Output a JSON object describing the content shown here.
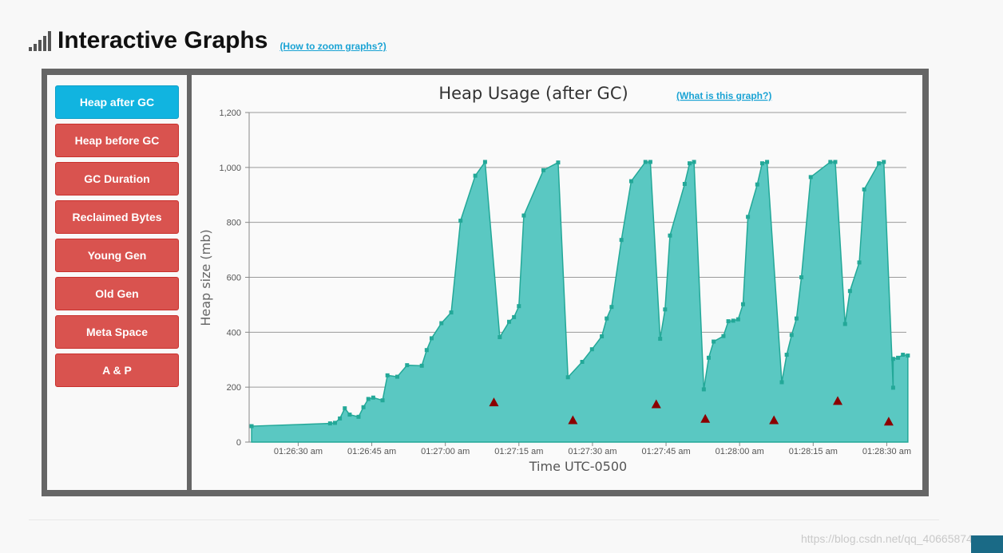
{
  "header": {
    "title": "Interactive Graphs",
    "zoom_link": "(How to zoom graphs?)"
  },
  "sidebar": {
    "items": [
      {
        "label": "Heap after GC",
        "active": true
      },
      {
        "label": "Heap before GC",
        "active": false
      },
      {
        "label": "GC Duration",
        "active": false
      },
      {
        "label": "Reclaimed Bytes",
        "active": false
      },
      {
        "label": "Young Gen",
        "active": false
      },
      {
        "label": "Old Gen",
        "active": false
      },
      {
        "label": "Meta Space",
        "active": false
      },
      {
        "label": "A & P",
        "active": false
      }
    ]
  },
  "colors": {
    "active_button": "#11b4e0",
    "button": "#d9534f",
    "area_fill": "#5ac8c2",
    "area_line": "#23a898",
    "marker": "#8b0000"
  },
  "chart_data": {
    "type": "area",
    "title": "Heap Usage (after GC)",
    "help_link": "(What is this graph?)",
    "xlabel": "Time UTC-0500",
    "ylabel": "Heap size (mb)",
    "ylim": [
      0,
      1200
    ],
    "yticks": [
      0,
      200,
      400,
      600,
      800,
      1000,
      1200
    ],
    "ytick_labels": [
      "0",
      "200",
      "400",
      "600",
      "800",
      "1,000",
      "1,200"
    ],
    "xlim": [
      "01:26:20",
      "01:28:34"
    ],
    "xticks": [
      "01:26:30",
      "01:26:45",
      "01:27:00",
      "01:27:15",
      "01:27:30",
      "01:27:45",
      "01:28:00",
      "01:28:15",
      "01:28:30"
    ],
    "xtick_labels": [
      "01:26:30 am",
      "01:26:45 am",
      "01:27:00 am",
      "01:27:15 am",
      "01:27:30 am",
      "01:27:45 am",
      "01:28:00 am",
      "01:28:15 am",
      "01:28:30 am"
    ],
    "grid": true,
    "series": [
      {
        "marker": "square",
        "points": [
          [
            "01:26:20.5",
            58
          ],
          [
            "01:26:36.5",
            68
          ],
          [
            "01:26:37.5",
            70
          ],
          [
            "01:26:38.5",
            86
          ],
          [
            "01:26:39.5",
            123
          ],
          [
            "01:26:40.5",
            100
          ],
          [
            "01:26:42.3",
            92
          ],
          [
            "01:26:43.3",
            127
          ],
          [
            "01:26:44.3",
            157
          ],
          [
            "01:26:45.3",
            162
          ],
          [
            "01:26:47.2",
            152
          ],
          [
            "01:26:48.2",
            243
          ],
          [
            "01:26:50.2",
            238
          ],
          [
            "01:26:52.2",
            280
          ],
          [
            "01:26:55.2",
            278
          ],
          [
            "01:26:56.2",
            335
          ],
          [
            "01:26:57.2",
            378
          ],
          [
            "01:26:59.2",
            433
          ],
          [
            "01:27:01.2",
            472
          ],
          [
            "01:27:03.1",
            806
          ],
          [
            "01:27:06.1",
            970
          ],
          [
            "01:27:08.1",
            1020
          ],
          [
            "01:27:11.1",
            382
          ],
          [
            "01:27:13",
            438
          ],
          [
            "01:27:14",
            455
          ],
          [
            "01:27:15",
            495
          ],
          [
            "01:27:16",
            825
          ],
          [
            "01:27:20",
            990
          ],
          [
            "01:27:23",
            1018
          ],
          [
            "01:27:25",
            236
          ],
          [
            "01:27:27.9",
            292
          ],
          [
            "01:27:29.9",
            338
          ],
          [
            "01:27:31.9",
            385
          ],
          [
            "01:27:32.9",
            450
          ],
          [
            "01:27:33.9",
            492
          ],
          [
            "01:27:35.9",
            736
          ],
          [
            "01:27:37.9",
            950
          ],
          [
            "01:27:40.8",
            1020
          ],
          [
            "01:27:41.8",
            1020
          ],
          [
            "01:27:43.8",
            376
          ],
          [
            "01:27:44.8",
            483
          ],
          [
            "01:27:45.8",
            752
          ],
          [
            "01:27:48.8",
            940
          ],
          [
            "01:27:49.8",
            1015
          ],
          [
            "01:27:50.7",
            1020
          ],
          [
            "01:27:52.7",
            192
          ],
          [
            "01:27:53.7",
            307
          ],
          [
            "01:27:54.7",
            366
          ],
          [
            "01:27:56.7",
            386
          ],
          [
            "01:27:57.7",
            440
          ],
          [
            "01:27:58.7",
            442
          ],
          [
            "01:27:59.7",
            447
          ],
          [
            "01:28:00.7",
            502
          ],
          [
            "01:28:01.7",
            820
          ],
          [
            "01:28:03.6",
            938
          ],
          [
            "01:28:04.6",
            1015
          ],
          [
            "01:28:05.6",
            1020
          ],
          [
            "01:28:08.6",
            218
          ],
          [
            "01:28:09.6",
            318
          ],
          [
            "01:28:10.6",
            390
          ],
          [
            "01:28:11.6",
            450
          ],
          [
            "01:28:12.6",
            600
          ],
          [
            "01:28:14.5",
            965
          ],
          [
            "01:28:18.5",
            1020
          ],
          [
            "01:28:19.5",
            1020
          ],
          [
            "01:28:21.5",
            430
          ],
          [
            "01:28:22.5",
            550
          ],
          [
            "01:28:24.4",
            654
          ],
          [
            "01:28:25.4",
            920
          ],
          [
            "01:28:28.4",
            1015
          ],
          [
            "01:28:29.4",
            1020
          ],
          [
            "01:28:31.3",
            198
          ],
          [
            "01:28:31.3",
            303
          ],
          [
            "01:28:32.3",
            307
          ],
          [
            "01:28:33.3",
            318
          ],
          [
            "01:28:34.3",
            315
          ]
        ]
      },
      {
        "marker": "triangle",
        "points": [
          [
            "01:27:09.9",
            145
          ],
          [
            "01:27:26",
            80
          ],
          [
            "01:27:43",
            138
          ],
          [
            "01:27:53",
            85
          ],
          [
            "01:28:07",
            80
          ],
          [
            "01:28:20",
            150
          ],
          [
            "01:28:30.4",
            75
          ]
        ]
      }
    ]
  }
}
